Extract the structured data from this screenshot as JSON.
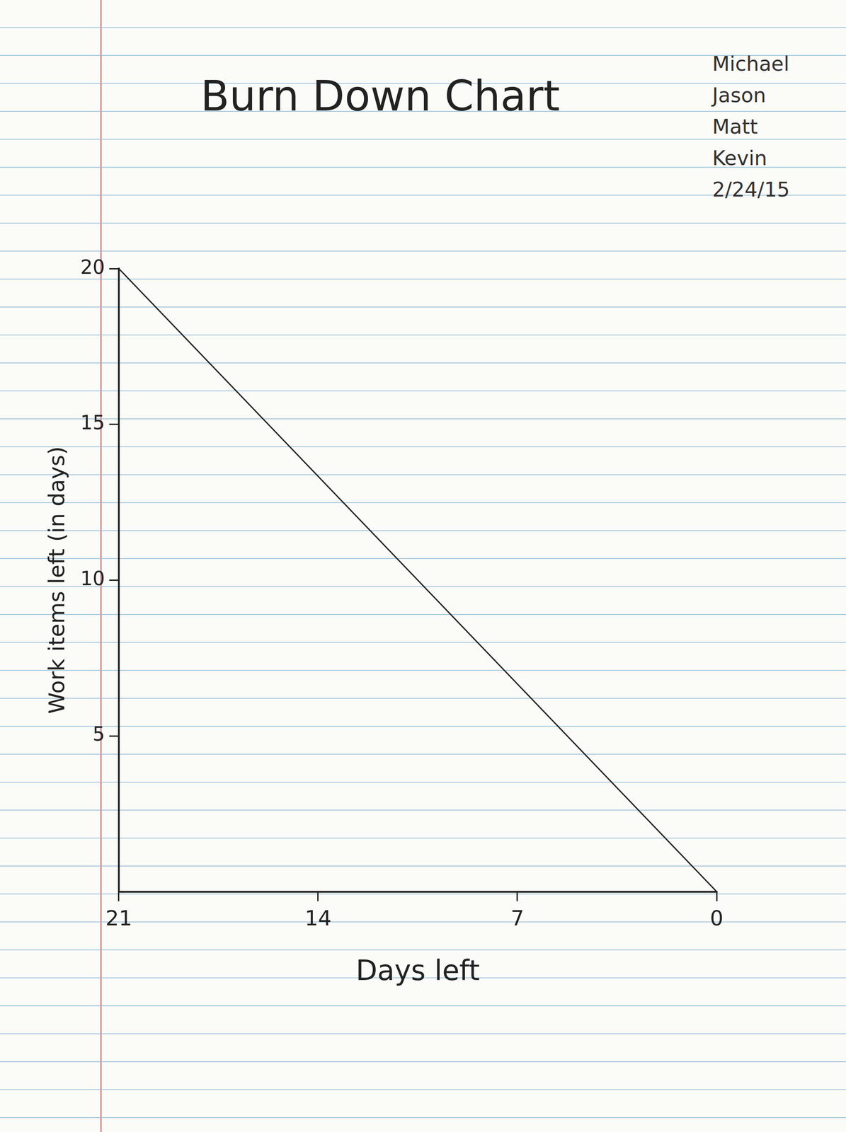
{
  "chart_data": {
    "type": "line",
    "title": "Burn Down Chart",
    "x_label": "Days left",
    "y_label": "Work items left (in days)",
    "x": [
      21,
      0
    ],
    "values": [
      20,
      0
    ],
    "color": "#222222",
    "xlim": [
      21,
      0
    ],
    "xticks": [
      21,
      14,
      7,
      0
    ],
    "ylim": [
      0,
      20
    ],
    "yticks": [
      5,
      10,
      15,
      20
    ],
    "grid": false,
    "annotations": [
      "Michael",
      "Jason",
      "Matt",
      "Kevin",
      "2/24/15"
    ]
  }
}
